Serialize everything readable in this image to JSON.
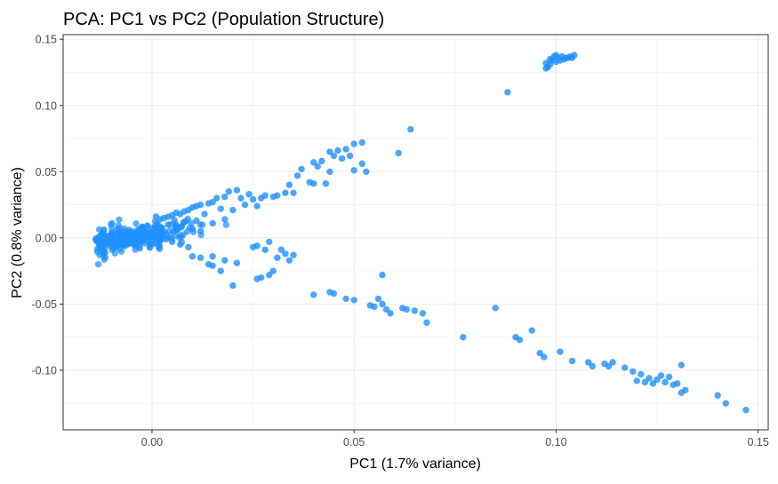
{
  "chart_data": {
    "type": "scatter",
    "title": "PCA: PC1 vs PC2 (Population Structure)",
    "xlabel": "PC1 (1.7% variance)",
    "ylabel": "PC2 (0.8% variance)",
    "xlim": [
      -0.022,
      0.1525
    ],
    "ylim": [
      -0.145,
      0.1535
    ],
    "x_ticks": [
      0.0,
      0.05,
      0.1,
      0.15
    ],
    "y_ticks": [
      -0.1,
      -0.05,
      0.0,
      0.05,
      0.1,
      0.15
    ],
    "x_tick_labels": [
      "0.00",
      "0.05",
      "0.10",
      "0.15"
    ],
    "y_tick_labels": [
      "-0.10",
      "-0.05",
      "0.00",
      "0.05",
      "0.10",
      "0.15"
    ],
    "grid": true,
    "point_color": "#1e90ff",
    "cluster": {
      "center": [
        -0.005,
        0.0
      ],
      "spread_x": 0.006,
      "spread_y": 0.0045,
      "count": 320
    },
    "points": [
      [
        0.0975,
        0.128
      ],
      [
        0.0985,
        0.131
      ],
      [
        0.099,
        0.134
      ],
      [
        0.0995,
        0.137
      ],
      [
        0.1,
        0.133
      ],
      [
        0.1005,
        0.136
      ],
      [
        0.101,
        0.134
      ],
      [
        0.1015,
        0.137
      ],
      [
        0.102,
        0.135
      ],
      [
        0.1025,
        0.136
      ],
      [
        0.103,
        0.136
      ],
      [
        0.1035,
        0.137
      ],
      [
        0.104,
        0.136
      ],
      [
        0.1045,
        0.138
      ],
      [
        0.098,
        0.129
      ],
      [
        0.0985,
        0.135
      ],
      [
        0.0975,
        0.132
      ],
      [
        0.1,
        0.138
      ],
      [
        0.088,
        0.11
      ],
      [
        0.064,
        0.082
      ],
      [
        0.052,
        0.072
      ],
      [
        0.05,
        0.071
      ],
      [
        0.061,
        0.064
      ],
      [
        0.048,
        0.067
      ],
      [
        0.046,
        0.066
      ],
      [
        0.044,
        0.065
      ],
      [
        0.047,
        0.06
      ],
      [
        0.049,
        0.062
      ],
      [
        0.052,
        0.056
      ],
      [
        0.053,
        0.05
      ],
      [
        0.05,
        0.051
      ],
      [
        0.042,
        0.058
      ],
      [
        0.04,
        0.057
      ],
      [
        0.041,
        0.054
      ],
      [
        0.045,
        0.062
      ],
      [
        0.044,
        0.05
      ],
      [
        0.043,
        0.041
      ],
      [
        0.037,
        0.052
      ],
      [
        0.036,
        0.047
      ],
      [
        0.039,
        0.042
      ],
      [
        0.04,
        0.041
      ],
      [
        0.034,
        0.04
      ],
      [
        0.035,
        0.034
      ],
      [
        0.033,
        0.034
      ],
      [
        0.031,
        0.032
      ],
      [
        0.03,
        0.031
      ],
      [
        0.028,
        0.032
      ],
      [
        0.027,
        0.03
      ],
      [
        0.025,
        0.029
      ],
      [
        0.024,
        0.033
      ],
      [
        0.022,
        0.03
      ],
      [
        0.019,
        0.035
      ],
      [
        0.021,
        0.036
      ],
      [
        0.018,
        0.031
      ],
      [
        0.016,
        0.03
      ],
      [
        0.015,
        0.027
      ],
      [
        0.014,
        0.026
      ],
      [
        0.012,
        0.025
      ],
      [
        0.011,
        0.024
      ],
      [
        0.01,
        0.023
      ],
      [
        0.009,
        0.021
      ],
      [
        0.008,
        0.02
      ],
      [
        0.007,
        0.018
      ],
      [
        0.006,
        0.019
      ],
      [
        0.005,
        0.017
      ],
      [
        0.004,
        0.016
      ],
      [
        0.003,
        0.015
      ],
      [
        0.002,
        0.014
      ],
      [
        0.001,
        0.016
      ],
      [
        0.026,
        0.024
      ],
      [
        0.023,
        0.025
      ],
      [
        0.02,
        0.021
      ],
      [
        0.017,
        0.022
      ],
      [
        0.013,
        0.018
      ],
      [
        0.011,
        0.013
      ],
      [
        0.008,
        0.012
      ],
      [
        0.015,
        0.011
      ],
      [
        0.018,
        0.014
      ],
      [
        0.006,
        0.009
      ],
      [
        0.004,
        0.01
      ],
      [
        0.002,
        0.008
      ],
      [
        0.01,
        0.007
      ],
      [
        0.012,
        0.005
      ],
      [
        0.005,
        -0.003
      ],
      [
        0.007,
        -0.005
      ],
      [
        0.009,
        -0.007
      ],
      [
        0.012,
        -0.015
      ],
      [
        0.015,
        -0.014
      ],
      [
        0.01,
        -0.014
      ],
      [
        0.014,
        -0.02
      ],
      [
        0.018,
        -0.017
      ],
      [
        0.021,
        -0.019
      ],
      [
        0.025,
        -0.007
      ],
      [
        0.026,
        -0.006
      ],
      [
        0.028,
        -0.009
      ],
      [
        0.029,
        -0.003
      ],
      [
        0.03,
        -0.025
      ],
      [
        0.031,
        -0.015
      ],
      [
        0.032,
        -0.009
      ],
      [
        0.033,
        -0.012
      ],
      [
        0.034,
        -0.017
      ],
      [
        0.035,
        -0.013
      ],
      [
        0.026,
        -0.031
      ],
      [
        0.027,
        -0.03
      ],
      [
        0.029,
        -0.028
      ],
      [
        0.02,
        -0.036
      ],
      [
        0.017,
        -0.025
      ],
      [
        0.015,
        -0.021
      ],
      [
        0.04,
        -0.043
      ],
      [
        0.044,
        -0.041
      ],
      [
        0.045,
        -0.042
      ],
      [
        0.048,
        -0.046
      ],
      [
        0.05,
        -0.047
      ],
      [
        0.054,
        -0.051
      ],
      [
        0.055,
        -0.052
      ],
      [
        0.057,
        -0.05
      ],
      [
        0.058,
        -0.054
      ],
      [
        0.056,
        -0.046
      ],
      [
        0.057,
        -0.028
      ],
      [
        0.059,
        -0.057
      ],
      [
        0.062,
        -0.053
      ],
      [
        0.063,
        -0.054
      ],
      [
        0.065,
        -0.055
      ],
      [
        0.067,
        -0.057
      ],
      [
        0.068,
        -0.064
      ],
      [
        0.077,
        -0.075
      ],
      [
        0.085,
        -0.053
      ],
      [
        0.09,
        -0.075
      ],
      [
        0.091,
        -0.077
      ],
      [
        0.094,
        -0.07
      ],
      [
        0.096,
        -0.087
      ],
      [
        0.097,
        -0.09
      ],
      [
        0.101,
        -0.086
      ],
      [
        0.104,
        -0.093
      ],
      [
        0.108,
        -0.094
      ],
      [
        0.109,
        -0.097
      ],
      [
        0.112,
        -0.095
      ],
      [
        0.113,
        -0.097
      ],
      [
        0.114,
        -0.094
      ],
      [
        0.117,
        -0.098
      ],
      [
        0.119,
        -0.101
      ],
      [
        0.121,
        -0.103
      ],
      [
        0.123,
        -0.106
      ],
      [
        0.124,
        -0.11
      ],
      [
        0.125,
        -0.107
      ],
      [
        0.127,
        -0.109
      ],
      [
        0.128,
        -0.105
      ],
      [
        0.129,
        -0.111
      ],
      [
        0.13,
        -0.11
      ],
      [
        0.131,
        -0.096
      ],
      [
        0.132,
        -0.115
      ],
      [
        0.131,
        -0.117
      ],
      [
        0.14,
        -0.119
      ],
      [
        0.142,
        -0.125
      ],
      [
        0.147,
        -0.13
      ],
      [
        0.12,
        -0.108
      ],
      [
        0.122,
        -0.109
      ],
      [
        0.126,
        -0.104
      ]
    ]
  }
}
